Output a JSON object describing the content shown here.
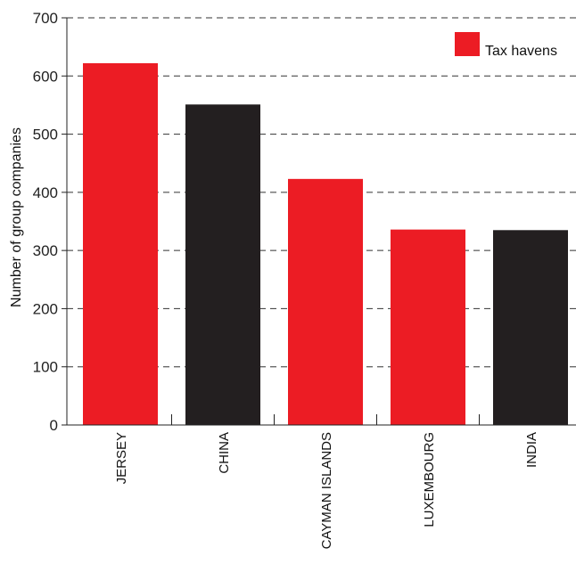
{
  "chart_data": {
    "type": "bar",
    "ylabel": "Number of group companies",
    "xlabel": "",
    "ylim": [
      0,
      700
    ],
    "yticks": [
      0,
      100,
      200,
      300,
      400,
      500,
      600,
      700
    ],
    "grid": true,
    "legend_position": "top-right",
    "categories": [
      "JERSEY",
      "CHINA",
      "CAYMAN ISLANDS",
      "LUXEMBOURG",
      "INDIA"
    ],
    "values": [
      622,
      551,
      423,
      336,
      335
    ],
    "tax_haven": [
      true,
      false,
      true,
      true,
      false
    ],
    "legend": [
      {
        "label": "Tax havens",
        "color": "#ec1c24"
      }
    ],
    "colors": {
      "tax_haven": "#ec1c24",
      "other": "#231f20"
    }
  }
}
